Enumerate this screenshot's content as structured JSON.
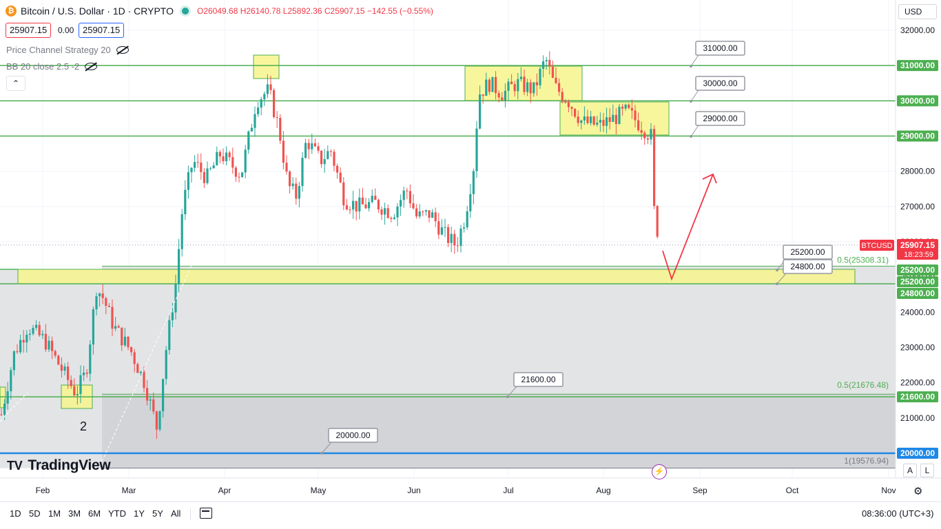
{
  "header": {
    "symbol": "Bitcoin / U.S. Dollar · 1D · CRYPTO",
    "ohlc": {
      "o": "O26049.68",
      "h": "H26140.78",
      "l": "L25892.36",
      "c": "C25907.15",
      "chg": "−142.55 (−0.55%)"
    },
    "bid": "25907.15",
    "spread": "0.00",
    "ask": "25907.15",
    "indicator1": "Price Channel Strategy 20",
    "indicator2": "BB 20 close 2.5 -2",
    "collapse": "⌃",
    "currency": "USD"
  },
  "colors": {
    "up": "#26a69a",
    "down": "#ef5350",
    "level": "#4caf50",
    "zone": "#f7f48c",
    "blue": "#1e88e5",
    "arrow": "#f23645",
    "tag": "#f23645"
  },
  "brand": {
    "mark": "𝟏𝟕",
    "name": "TradingView"
  },
  "chart_data": {
    "type": "candlestick",
    "symbol": "BTCUSD",
    "ylim": [
      19400,
      32300
    ],
    "y_ticks": [
      "32000.00",
      "31000.00",
      "30000.00",
      "29000.00",
      "28000.00",
      "27000.00",
      "26000.00",
      "25000.00",
      "24000.00",
      "23000.00",
      "22000.00",
      "21000.00",
      "20000.00"
    ],
    "x_labels": [
      "Feb",
      "Mar",
      "Apr",
      "May",
      "Jun",
      "Jul",
      "Aug",
      "Sep",
      "Oct",
      "Nov"
    ],
    "candles": [],
    "last_price_label": "BTCUSD",
    "last_price": "25907.15",
    "countdown": "18:23:59",
    "levels": [
      {
        "value": 31000,
        "label": "31000.00",
        "tag": "31000.00"
      },
      {
        "value": 30000,
        "label": "30000.00",
        "tag": "30000.00"
      },
      {
        "value": 29000,
        "label": "29000.00",
        "tag": "29000.00"
      },
      {
        "value": 25200,
        "label": "25200.00",
        "tag": "25200.00"
      },
      {
        "value": 24800,
        "label": "24800.00",
        "tag": "24800.00"
      },
      {
        "value": 21600,
        "label": "21600.00",
        "tag": "21600.00"
      },
      {
        "value": 20000,
        "label": "20000.00",
        "tag": "20000.00"
      }
    ],
    "extra_axis_tag": "25200.00",
    "fib_labels": [
      "0.5(25308.31)",
      "0.5(21676.48)",
      "1(19576.94)"
    ],
    "annotation": "2"
  },
  "bottom": {
    "timeframes": [
      "1D",
      "5D",
      "1M",
      "3M",
      "6M",
      "YTD",
      "1Y",
      "5Y",
      "All"
    ],
    "time": "08:36:00 (UTC+3)",
    "toggle_a": "A",
    "toggle_l": "L"
  }
}
